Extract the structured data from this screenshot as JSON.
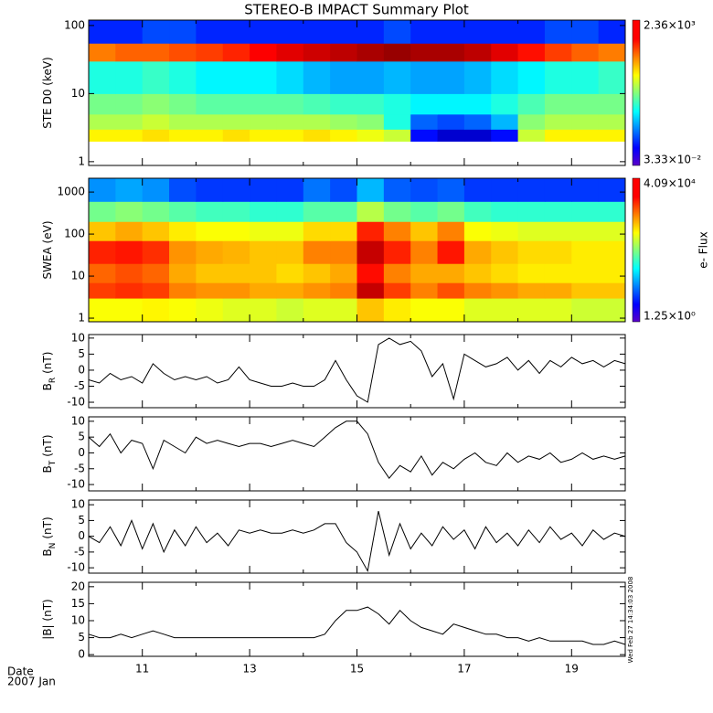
{
  "chart_data": {
    "type": "multi-panel",
    "title": "STEREO-B IMPACT Summary Plot",
    "xlabel": "Date",
    "xlabel2": "2007 Jan",
    "timestamp": "Wed Feb 27 14:34:03 2008",
    "xlim": [
      10,
      20
    ],
    "xticks": [
      11,
      13,
      15,
      17,
      19
    ],
    "xminor_ticks": [
      10,
      12,
      14,
      16,
      18,
      20
    ],
    "x": [
      10,
      10.2,
      10.4,
      10.6,
      10.8,
      11,
      11.2,
      11.4,
      11.6,
      11.8,
      12,
      12.2,
      12.4,
      12.6,
      12.8,
      13,
      13.2,
      13.4,
      13.6,
      13.8,
      14,
      14.2,
      14.4,
      14.6,
      14.8,
      15,
      15.2,
      15.4,
      15.6,
      15.8,
      16,
      16.2,
      16.4,
      16.6,
      16.8,
      17,
      17.2,
      17.4,
      17.6,
      17.8,
      18,
      18.2,
      18.4,
      18.6,
      18.8,
      19,
      19.2,
      19.4,
      19.6,
      19.8,
      20
    ],
    "panels": [
      {
        "type": "spectrogram",
        "ylabel": "STE D0 (keV)",
        "log": true,
        "ylim": [
          0.88,
          120
        ],
        "yticks": [
          1,
          10,
          100
        ],
        "zticks": [
          {
            "value": 0.0333,
            "label": "3.33×10⁻²"
          },
          {
            "value": 2360,
            "label": "2.36×10³"
          }
        ],
        "x_edges": [
          10,
          10.5,
          11,
          11.5,
          12,
          12.5,
          13,
          13.5,
          14,
          14.5,
          15,
          15.5,
          16,
          16.5,
          17,
          17.5,
          18,
          18.5,
          19,
          19.5,
          20
        ],
        "y_edges": [
          2,
          3,
          5,
          10,
          30,
          55,
          120
        ],
        "values": [
          [
            40,
            40,
            50,
            40,
            40,
            50,
            40,
            40,
            50,
            40,
            30,
            20,
            0.15,
            0.08,
            0.08,
            0.15,
            20,
            40,
            40,
            40
          ],
          [
            15,
            15,
            20,
            15,
            15,
            15,
            15,
            15,
            15,
            12,
            10,
            3,
            0.4,
            0.3,
            0.4,
            1,
            10,
            15,
            15,
            15
          ],
          [
            8,
            8,
            10,
            8,
            6,
            6,
            6,
            6,
            5,
            4,
            4,
            3,
            2,
            2,
            2,
            3,
            5,
            8,
            8,
            8
          ],
          [
            3,
            3,
            4,
            3,
            2,
            2,
            2,
            1.5,
            1,
            0.8,
            0.8,
            1,
            0.8,
            0.8,
            1,
            1.5,
            2,
            3,
            3,
            4
          ],
          [
            150,
            200,
            200,
            250,
            300,
            400,
            600,
            800,
            1000,
            1200,
            1500,
            1800,
            1500,
            1500,
            1200,
            800,
            500,
            300,
            200,
            150
          ],
          [
            0.2,
            0.2,
            0.3,
            0.3,
            0.2,
            0.2,
            0.2,
            0.2,
            0.2,
            0.2,
            0.2,
            0.3,
            0.2,
            0.2,
            0.2,
            0.2,
            0.2,
            0.3,
            0.3,
            0.2
          ]
        ]
      },
      {
        "type": "spectrogram",
        "ylabel": "SWEA (eV)",
        "log": true,
        "ylim": [
          0.82,
          2130
        ],
        "yticks": [
          1,
          10,
          100,
          1000
        ],
        "zlabel": "e- Flux",
        "zticks": [
          {
            "value": 1.25,
            "label": "1.25×10⁰"
          },
          {
            "value": 40900,
            "label": "4.09×10⁴"
          }
        ],
        "x_edges": [
          10,
          10.5,
          11,
          11.5,
          12,
          12.5,
          13,
          13.5,
          14,
          14.5,
          15,
          15.5,
          16,
          16.5,
          17,
          17.5,
          18,
          18.5,
          19,
          19.5,
          20
        ],
        "y_edges": [
          0.82,
          3,
          7,
          20,
          70,
          200,
          600,
          2130
        ],
        "values": [
          [
            800,
            800,
            900,
            800,
            700,
            600,
            600,
            500,
            600,
            600,
            1500,
            1000,
            800,
            800,
            600,
            600,
            600,
            600,
            500,
            500
          ],
          [
            6000,
            7000,
            6000,
            3000,
            2500,
            2500,
            2000,
            2000,
            2500,
            3000,
            20000,
            6000,
            3000,
            5000,
            3000,
            2500,
            2000,
            2000,
            1500,
            1500
          ],
          [
            4000,
            5000,
            4000,
            2000,
            1500,
            1500,
            1500,
            1200,
            1500,
            2000,
            10000,
            3000,
            2000,
            2000,
            1500,
            1200,
            1000,
            1000,
            1000,
            1000
          ],
          [
            8000,
            9000,
            7000,
            2500,
            2000,
            1800,
            1500,
            1500,
            3000,
            3000,
            20000,
            8000,
            3000,
            9000,
            2000,
            1500,
            1200,
            1200,
            1000,
            1000
          ],
          [
            1500,
            2000,
            1500,
            1000,
            800,
            800,
            700,
            700,
            1200,
            1200,
            8000,
            3000,
            1500,
            3000,
            800,
            700,
            600,
            600,
            600,
            600
          ],
          [
            200,
            250,
            200,
            150,
            120,
            120,
            100,
            100,
            150,
            150,
            400,
            200,
            150,
            200,
            120,
            100,
            100,
            100,
            100,
            100
          ],
          [
            20,
            25,
            20,
            10,
            8,
            8,
            8,
            8,
            15,
            10,
            30,
            12,
            10,
            12,
            8,
            8,
            8,
            8,
            8,
            8
          ]
        ]
      },
      {
        "type": "line",
        "ylabel": "B",
        "ylabel_sub": "R",
        "ylabel_unit": "(nT)",
        "color": "#000000",
        "ylim": [
          -11.7,
          11.1
        ],
        "yticks": [
          -10,
          -5,
          0,
          5,
          10
        ],
        "values": [
          -3,
          -4,
          -1,
          -3,
          -2,
          -4,
          2,
          -1,
          -3,
          -2,
          -3,
          -2,
          -4,
          -3,
          1,
          -3,
          -4,
          -5,
          -5,
          -4,
          -5,
          -5,
          -3,
          3,
          -3,
          -8,
          -10,
          8,
          10,
          8,
          9,
          6,
          -2,
          2,
          -9,
          5,
          3,
          1,
          2,
          4,
          0,
          3,
          -1,
          3,
          1,
          4,
          2,
          3,
          1,
          3,
          2
        ]
      },
      {
        "type": "line",
        "ylabel": "B",
        "ylabel_sub": "T",
        "ylabel_unit": "(nT)",
        "color": "#000000",
        "ylim": [
          -12,
          11.4
        ],
        "yticks": [
          -10,
          -5,
          0,
          5,
          10
        ],
        "values": [
          5,
          2,
          6,
          0,
          4,
          3,
          -5,
          4,
          2,
          0,
          5,
          3,
          4,
          3,
          2,
          3,
          3,
          2,
          3,
          4,
          3,
          2,
          5,
          8,
          10,
          10,
          6,
          -3,
          -8,
          -4,
          -6,
          -1,
          -7,
          -3,
          -5,
          -2,
          0,
          -3,
          -4,
          0,
          -3,
          -1,
          -2,
          0,
          -3,
          -2,
          0,
          -2,
          -1,
          -2,
          -1
        ]
      },
      {
        "type": "line",
        "ylabel": "B",
        "ylabel_sub": "N",
        "ylabel_unit": "(nT)",
        "color": "#000000",
        "ylim": [
          -11.7,
          11.5
        ],
        "yticks": [
          -10,
          -5,
          0,
          5,
          10
        ],
        "values": [
          0,
          -2,
          3,
          -3,
          5,
          -4,
          4,
          -5,
          2,
          -3,
          3,
          -2,
          1,
          -3,
          2,
          1,
          2,
          1,
          1,
          2,
          1,
          2,
          4,
          4,
          -2,
          -5,
          -11,
          8,
          -6,
          4,
          -4,
          1,
          -3,
          3,
          -1,
          2,
          -4,
          3,
          -2,
          1,
          -3,
          2,
          -2,
          3,
          -1,
          1,
          -3,
          2,
          -1,
          1,
          0
        ]
      },
      {
        "type": "line",
        "ylabel": "|B| (nT)",
        "color": "#000000",
        "ylim": [
          -0.5,
          21.3
        ],
        "yticks": [
          0,
          5,
          10,
          15,
          20
        ],
        "values": [
          6,
          5,
          5,
          6,
          5,
          6,
          7,
          6,
          5,
          5,
          5,
          5,
          5,
          5,
          5,
          5,
          5,
          5,
          5,
          5,
          5,
          5,
          6,
          10,
          13,
          13,
          14,
          12,
          9,
          13,
          10,
          8,
          7,
          6,
          9,
          8,
          7,
          6,
          6,
          5,
          5,
          4,
          5,
          4,
          4,
          4,
          4,
          3,
          3,
          4,
          3
        ]
      }
    ]
  }
}
